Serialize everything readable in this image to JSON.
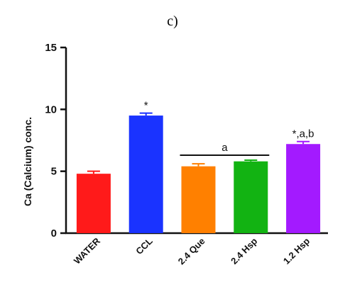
{
  "panel_label": "c)",
  "chart_data": {
    "type": "bar",
    "title": "",
    "xlabel": "",
    "ylabel": "Ca (Calcium) conc.",
    "ylim": [
      0,
      15
    ],
    "yticks": [
      "0",
      "5",
      "10",
      "15"
    ],
    "categories": [
      "WATER",
      "CCL",
      "2.4 Que",
      "2.4 Hsp",
      "1.2 Hsp"
    ],
    "values": [
      4.8,
      9.5,
      5.4,
      5.8,
      7.2
    ],
    "errors": [
      0.2,
      0.2,
      0.2,
      0.1,
      0.2
    ],
    "colors": [
      "#ff1a1a",
      "#1a33ff",
      "#ff8000",
      "#12b312",
      "#a31aff"
    ],
    "annotations": [
      "",
      "*",
      "",
      "",
      "*,a,b"
    ],
    "bracket": {
      "from": 2,
      "to": 3,
      "label": "a"
    },
    "grid": false
  }
}
